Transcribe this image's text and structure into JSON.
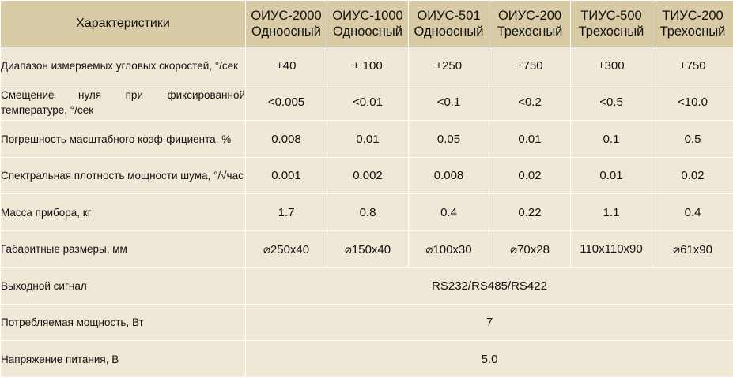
{
  "columns": [
    {
      "title": "Характеристики"
    },
    {
      "line1": "ОИУС-2000",
      "line2": "Одноосный"
    },
    {
      "line1": "ОИУС-1000",
      "line2": "Одноосный"
    },
    {
      "line1": "ОИУС-501",
      "line2": "Одноосный"
    },
    {
      "line1": "ОИУС-200",
      "line2": "Трехосный"
    },
    {
      "line1": "ТИУС-500",
      "line2": "Трехосный"
    },
    {
      "line1": "ТИУС-200",
      "line2": "Трехосный"
    }
  ],
  "rows": [
    {
      "param": "Диапазон измеряемых угловых скоростей, °/сек",
      "values": [
        "±40",
        "± 100",
        "±250",
        "±750",
        "±300",
        "±750"
      ]
    },
    {
      "param": "Смещение нуля при фиксированной температуре, °/сек",
      "values": [
        "<0.005",
        "<0.01",
        "<0.1",
        "<0.2",
        "<0.5",
        "<10.0"
      ]
    },
    {
      "param": "Погрешность масштабного коэф-фициента, %",
      "values": [
        "0.008",
        "0.01",
        "0.05",
        "0.01",
        "0.1",
        "0.5"
      ]
    },
    {
      "param": "Спектральная плотность мощности шума, °/√час",
      "values": [
        "0.001",
        "0.002",
        "0.008",
        "0.02",
        "0.01",
        "0.02"
      ]
    },
    {
      "param": "Масса прибора, кг",
      "values": [
        "1.7",
        "0.8",
        "0.4",
        "0.22",
        "1.1",
        "0.4"
      ]
    },
    {
      "param": "Габаритные размеры, мм",
      "values": [
        "⌀250x40",
        "⌀150x40",
        "⌀100x30",
        "⌀70x28",
        "110x110x90",
        "⌀61x90"
      ]
    }
  ],
  "shared_rows": [
    {
      "param": "Выходной сигнал",
      "value": "RS232/RS485/RS422"
    },
    {
      "param": "Потребляемая мощность, Вт",
      "value": "7"
    },
    {
      "param": "Напряжение питания, В",
      "value": "5.0"
    }
  ]
}
